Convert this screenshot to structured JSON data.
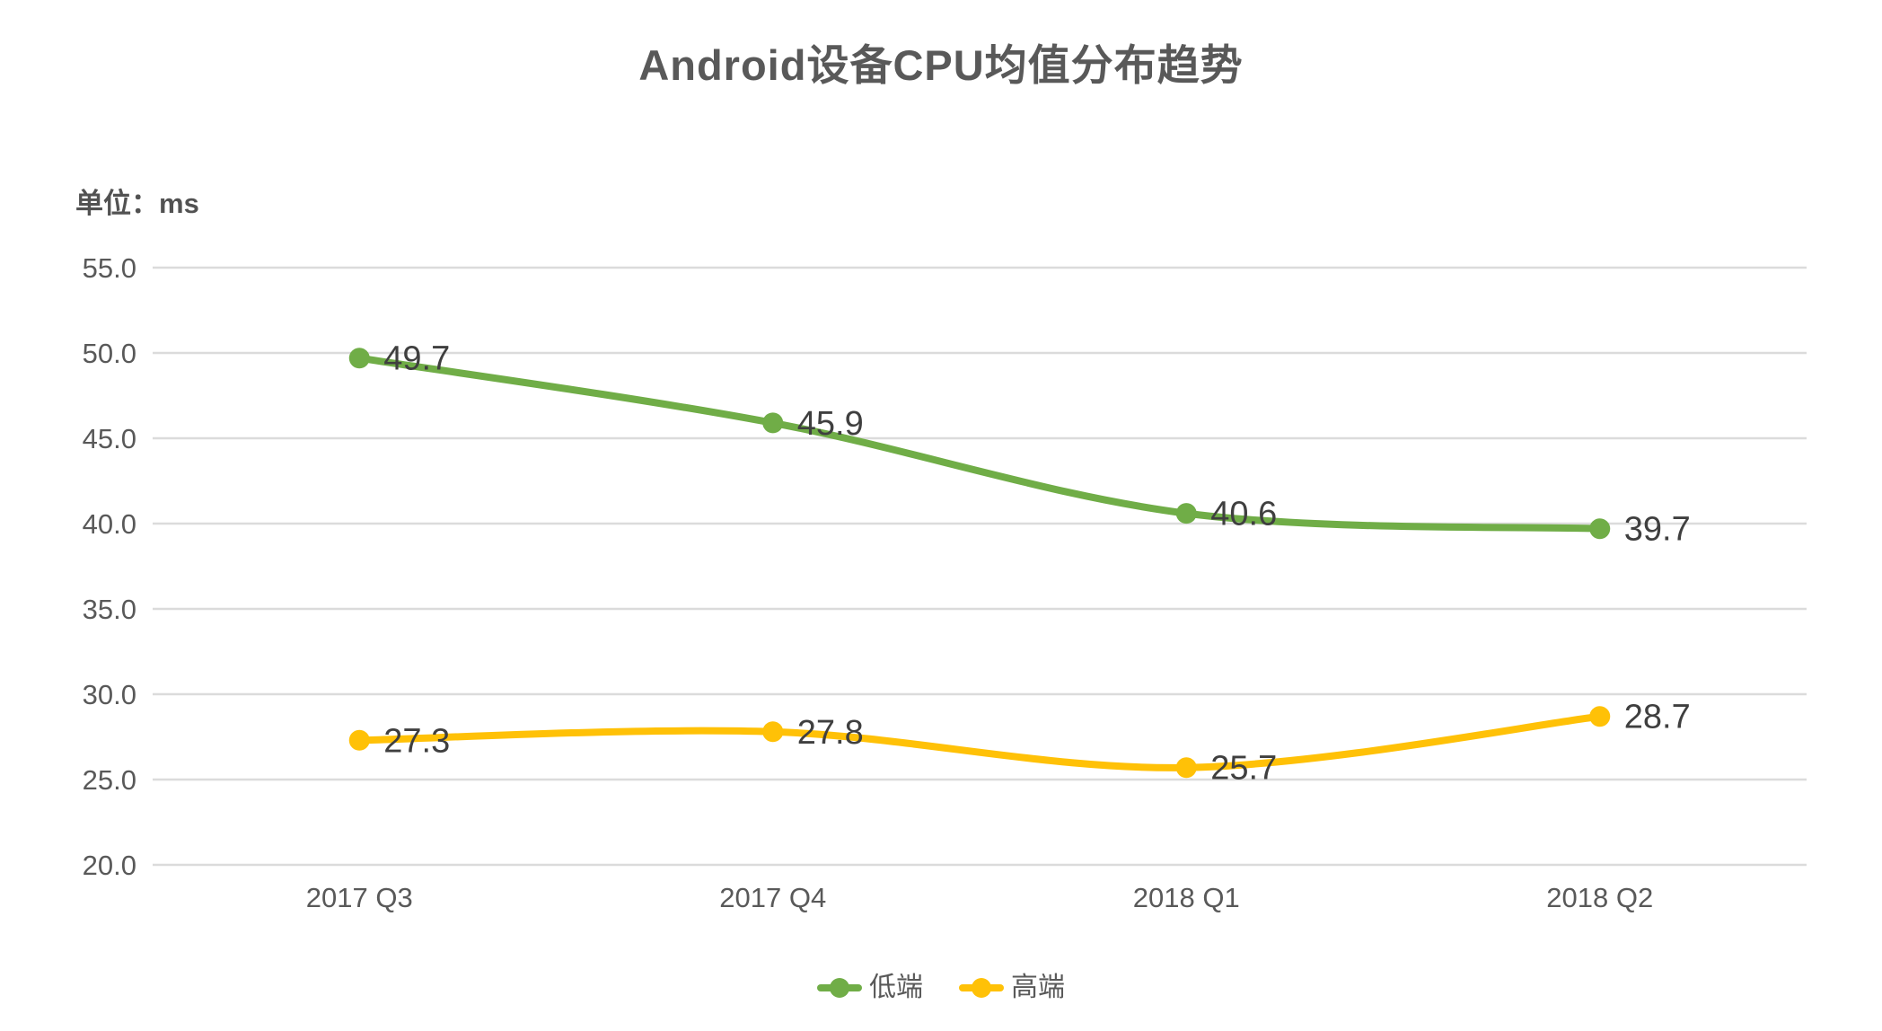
{
  "chart_data": {
    "type": "line",
    "title": "Android设备CPU均值分布趋势",
    "unit": "单位：ms",
    "categories": [
      "2017 Q3",
      "2017 Q4",
      "2018 Q1",
      "2018 Q2"
    ],
    "series": [
      {
        "name": "低端",
        "values": [
          49.7,
          45.9,
          40.6,
          39.7
        ],
        "color": "#70AD47"
      },
      {
        "name": "高端",
        "values": [
          27.3,
          27.8,
          25.7,
          28.7
        ],
        "color": "#FFC107"
      }
    ],
    "ylim": [
      20.0,
      55.0
    ],
    "ytick_step": 5.0,
    "yticks": [
      "55.0",
      "50.0",
      "45.0",
      "40.0",
      "35.0",
      "30.0",
      "25.0",
      "20.0"
    ],
    "grid": true,
    "grid_color": "#DBDBDB",
    "smooth": true,
    "data_labels_position": "right",
    "legend_position": "bottom",
    "background": "#FFFFFF",
    "title_color": "#595959",
    "tick_color": "#595959",
    "data_label_color": "#3F3F3F"
  }
}
